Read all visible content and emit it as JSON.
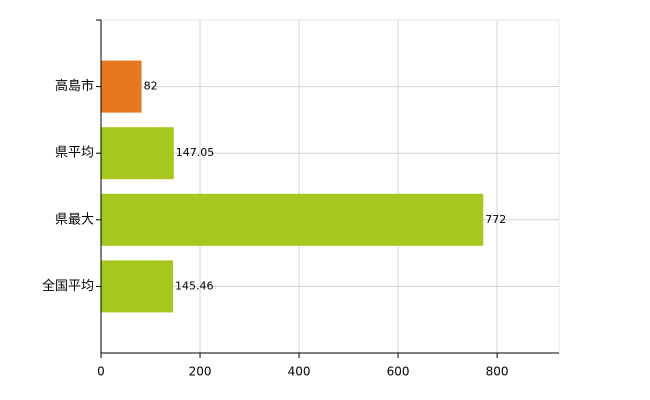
{
  "chart_data": {
    "type": "barh",
    "categories": [
      "高島市",
      "県平均",
      "県最大",
      "全国平均"
    ],
    "values": [
      82,
      147.05,
      772,
      145.46
    ],
    "colors": [
      "#e87722",
      "#a6c81e",
      "#a6c81e",
      "#a6c81e"
    ],
    "xlim": [
      0,
      925
    ],
    "xticks": [
      0,
      200,
      400,
      600,
      800
    ],
    "grid": true
  }
}
